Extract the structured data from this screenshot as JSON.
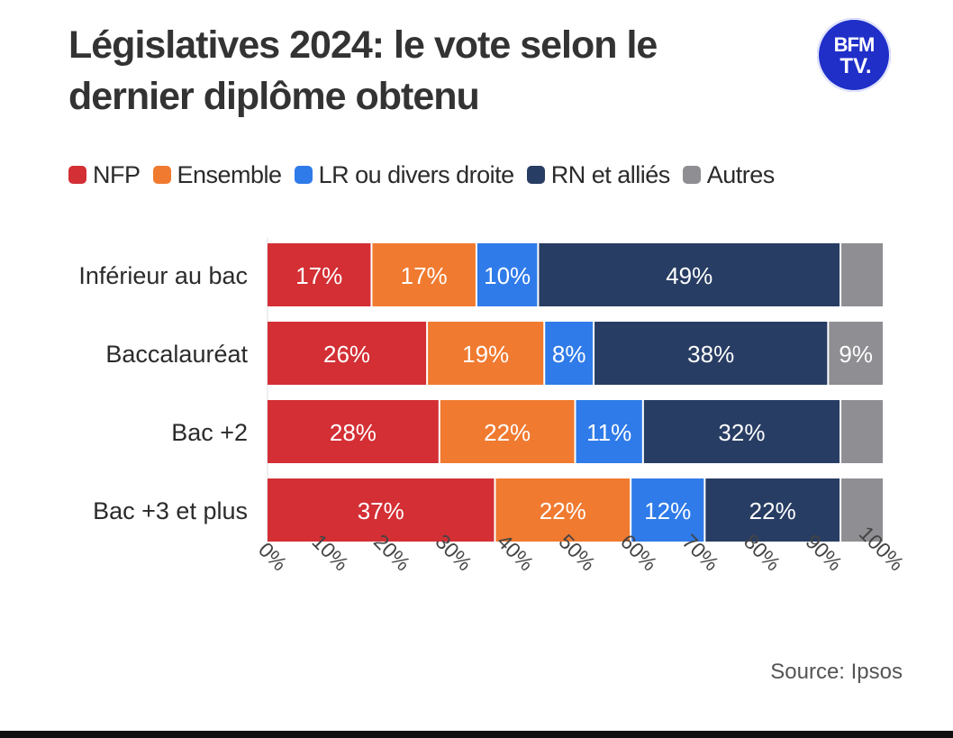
{
  "header": {
    "title": "Législatives 2024: le vote selon le dernier diplôme obtenu",
    "logo_text_top": "BFM",
    "logo_text_bottom": "TV."
  },
  "legend": [
    {
      "label": "NFP",
      "color": "#d32f35"
    },
    {
      "label": "Ensemble",
      "color": "#f07a30"
    },
    {
      "label": "LR ou divers droite",
      "color": "#2f7be9"
    },
    {
      "label": "RN et alliés",
      "color": "#283d63"
    },
    {
      "label": "Autres",
      "color": "#8e8e93"
    }
  ],
  "chart_data": {
    "type": "bar",
    "orientation": "horizontal",
    "stacked": true,
    "categories": [
      "Inférieur au bac",
      "Baccalauréat",
      "Bac +2",
      "Bac +3 et plus"
    ],
    "series": [
      {
        "name": "NFP",
        "color": "#d32f35",
        "values": [
          17,
          26,
          28,
          37
        ],
        "labels": [
          "17%",
          "26%",
          "28%",
          "37%"
        ]
      },
      {
        "name": "Ensemble",
        "color": "#f07a30",
        "values": [
          17,
          19,
          22,
          22
        ],
        "labels": [
          "17%",
          "19%",
          "22%",
          "22%"
        ]
      },
      {
        "name": "LR ou divers droite",
        "color": "#2f7be9",
        "values": [
          10,
          8,
          11,
          12
        ],
        "labels": [
          "10%",
          "8%",
          "11%",
          "12%"
        ]
      },
      {
        "name": "RN et alliés",
        "color": "#283d63",
        "values": [
          49,
          38,
          32,
          22
        ],
        "labels": [
          "49%",
          "38%",
          "32%",
          "22%"
        ]
      },
      {
        "name": "Autres",
        "color": "#8e8e93",
        "values": [
          7,
          9,
          7,
          7
        ],
        "labels": [
          "",
          "9%",
          "",
          ""
        ]
      }
    ],
    "xlim": [
      0,
      100
    ],
    "xticks": [
      "0%",
      "10%",
      "20%",
      "30%",
      "40%",
      "50%",
      "60%",
      "70%",
      "80%",
      "90%",
      "100%"
    ],
    "legend_position": "top"
  },
  "footer": {
    "source": "Source: Ipsos"
  }
}
